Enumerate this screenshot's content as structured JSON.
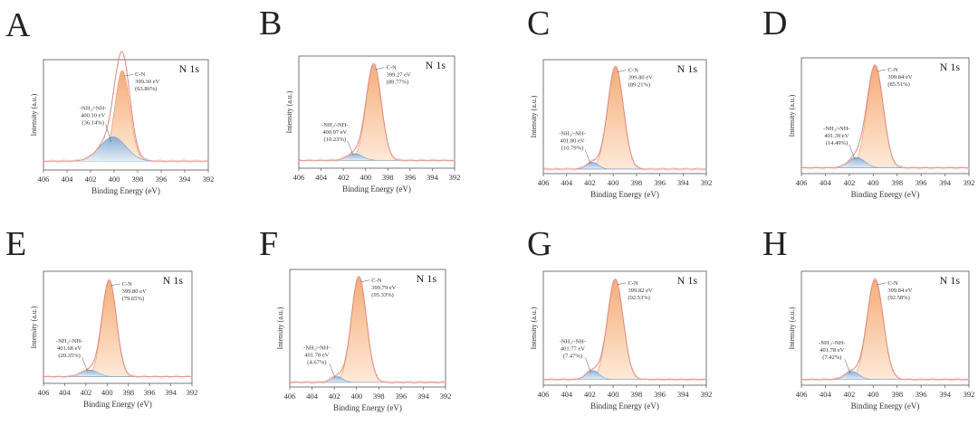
{
  "figure": {
    "colors": {
      "frame": "#555555",
      "fit_envelope": "#d98a80",
      "raw_points": "#f2b6b0",
      "cn_fill_top": "#f4a46a",
      "cn_fill_bottom": "#fde7d4",
      "cn_line": "#e8945a",
      "nh_fill_top": "#7fa8d6",
      "nh_fill_bottom": "#e4eef9",
      "nh_line": "#6f9bcf",
      "baseline": "#9bb0c9"
    }
  },
  "chart_data": [
    {
      "type": "line",
      "panel": "A",
      "title": "N 1s",
      "xlabel": "Binding Energy (eV)",
      "ylabel": "Intensity (a.u.)",
      "xlim": [
        406,
        392
      ],
      "ylim": [
        0,
        1.0
      ],
      "xticks": [
        "406",
        "404",
        "402",
        "400",
        "398",
        "396",
        "394",
        "392"
      ],
      "baseline": 0.08,
      "series": [
        {
          "name": "C-N",
          "center": 399.3,
          "height": 0.82,
          "fwhm": 1.5,
          "label": [
            "C-N",
            "399.30 eV",
            "(63.86%)"
          ]
        },
        {
          "name": "-NH2/-NH-",
          "center": 400.1,
          "height": 0.22,
          "fwhm": 2.6,
          "label": [
            "-NH₂/-NH-",
            "400.10 eV",
            "(36.14%)"
          ]
        }
      ]
    },
    {
      "type": "line",
      "panel": "B",
      "title": "N 1s",
      "xlabel": "Binding Energy (eV)",
      "ylabel": "Intensity (a.u.)",
      "xlim": [
        406,
        392
      ],
      "ylim": [
        0,
        1.0
      ],
      "xticks": [
        "406",
        "404",
        "402",
        "400",
        "398",
        "396",
        "394",
        "392"
      ],
      "baseline": 0.07,
      "series": [
        {
          "name": "C-N",
          "center": 399.27,
          "height": 0.86,
          "fwhm": 1.6,
          "label": [
            "C-N",
            "399.27 eV",
            "(89.77%)"
          ]
        },
        {
          "name": "-NH2/-NH-",
          "center": 400.97,
          "height": 0.06,
          "fwhm": 1.6,
          "label": [
            "-NH₂/-NH-",
            "400.97 eV",
            "(10.23%)"
          ]
        }
      ]
    },
    {
      "type": "line",
      "panel": "C",
      "title": "N 1s",
      "xlabel": "Binding Energy (eV)",
      "ylabel": "Intensity (a.u.)",
      "xlim": [
        406,
        392
      ],
      "ylim": [
        0,
        1.0
      ],
      "xticks": [
        "406",
        "404",
        "402",
        "400",
        "398",
        "396",
        "394",
        "392"
      ],
      "baseline": 0.04,
      "series": [
        {
          "name": "C-N",
          "center": 399.8,
          "height": 0.9,
          "fwhm": 1.6,
          "label": [
            "C-N",
            "399.80 eV",
            "(89.21%)"
          ]
        },
        {
          "name": "-NH2/-NH-",
          "center": 401.8,
          "height": 0.06,
          "fwhm": 1.2,
          "label": [
            "-NH₂/-NH-",
            "401.80 eV",
            "(10.79%)"
          ]
        }
      ]
    },
    {
      "type": "line",
      "panel": "D",
      "title": "N 1s",
      "xlabel": "Binding Energy (eV)",
      "ylabel": "Intensity (a.u.)",
      "xlim": [
        406,
        392
      ],
      "ylim": [
        0,
        1.0
      ],
      "xticks": [
        "406",
        "404",
        "402",
        "400",
        "398",
        "396",
        "394",
        "392"
      ],
      "baseline": 0.05,
      "series": [
        {
          "name": "C-N",
          "center": 399.84,
          "height": 0.88,
          "fwhm": 1.6,
          "label": [
            "C-N",
            "399.84 eV",
            "(85.51%)"
          ]
        },
        {
          "name": "-NH2/-NH-",
          "center": 401.39,
          "height": 0.09,
          "fwhm": 1.6,
          "label": [
            "-NH₂/-NH-",
            "401.39 eV",
            "(14.49%)"
          ]
        }
      ]
    },
    {
      "type": "line",
      "panel": "E",
      "title": "N 1s",
      "xlabel": "Binding Energy (eV)",
      "ylabel": "Intensity (a.u.)",
      "xlim": [
        406,
        392
      ],
      "ylim": [
        0,
        1.0
      ],
      "xticks": [
        "406",
        "404",
        "402",
        "400",
        "398",
        "396",
        "394",
        "392"
      ],
      "baseline": 0.06,
      "series": [
        {
          "name": "C-N",
          "center": 399.8,
          "height": 0.86,
          "fwhm": 1.6,
          "label": [
            "C-N",
            "399.80 eV",
            "(79.65%)"
          ]
        },
        {
          "name": "-NH2/-NH-",
          "center": 401.68,
          "height": 0.06,
          "fwhm": 1.8,
          "label": [
            "-NH₂/-NH-",
            "401.68 eV",
            "(20.35%)"
          ]
        }
      ]
    },
    {
      "type": "line",
      "panel": "F",
      "title": "N 1s",
      "xlabel": "Binding Energy (eV)",
      "ylabel": "Intensity (a.u.)",
      "xlim": [
        406,
        392
      ],
      "ylim": [
        0,
        1.0
      ],
      "xticks": [
        "406",
        "404",
        "402",
        "400",
        "398",
        "396",
        "394",
        "392"
      ],
      "baseline": 0.04,
      "series": [
        {
          "name": "C-N",
          "center": 399.79,
          "height": 0.9,
          "fwhm": 1.6,
          "label": [
            "C-N",
            "399.79 eV",
            "(95.33%)"
          ]
        },
        {
          "name": "-NH2/-NH-",
          "center": 401.78,
          "height": 0.05,
          "fwhm": 1.2,
          "label": [
            "-NH₂/-NH-",
            "401.78 eV",
            "(4.67%)"
          ]
        }
      ]
    },
    {
      "type": "line",
      "panel": "G",
      "title": "N 1s",
      "xlabel": "Binding Energy (eV)",
      "ylabel": "Intensity (a.u.)",
      "xlim": [
        406,
        392
      ],
      "ylim": [
        0,
        1.0
      ],
      "xticks": [
        "406",
        "404",
        "402",
        "400",
        "398",
        "396",
        "394",
        "392"
      ],
      "baseline": 0.05,
      "series": [
        {
          "name": "C-N",
          "center": 399.82,
          "height": 0.88,
          "fwhm": 1.6,
          "label": [
            "C-N",
            "399.82 eV",
            "(92.53%)"
          ]
        },
        {
          "name": "-NH2/-NH-",
          "center": 401.77,
          "height": 0.08,
          "fwhm": 1.3,
          "label": [
            "-NH₂/-NH-",
            "401.77 eV",
            "(7.47%)"
          ]
        }
      ]
    },
    {
      "type": "line",
      "panel": "H",
      "title": "N 1s",
      "xlabel": "Binding Energy (eV)",
      "ylabel": "Intensity (a.u.)",
      "xlim": [
        406,
        392
      ],
      "ylim": [
        0,
        1.0
      ],
      "xticks": [
        "406",
        "404",
        "402",
        "400",
        "398",
        "396",
        "394",
        "392"
      ],
      "baseline": 0.05,
      "series": [
        {
          "name": "C-N",
          "center": 399.84,
          "height": 0.88,
          "fwhm": 1.6,
          "label": [
            "C-N",
            "399.84 eV",
            "(92.58%)"
          ]
        },
        {
          "name": "-NH2/-NH-",
          "center": 401.78,
          "height": 0.07,
          "fwhm": 1.4,
          "label": [
            "-NH₂/-NH-",
            "401.78 eV",
            "(7.42%)"
          ]
        }
      ]
    }
  ]
}
